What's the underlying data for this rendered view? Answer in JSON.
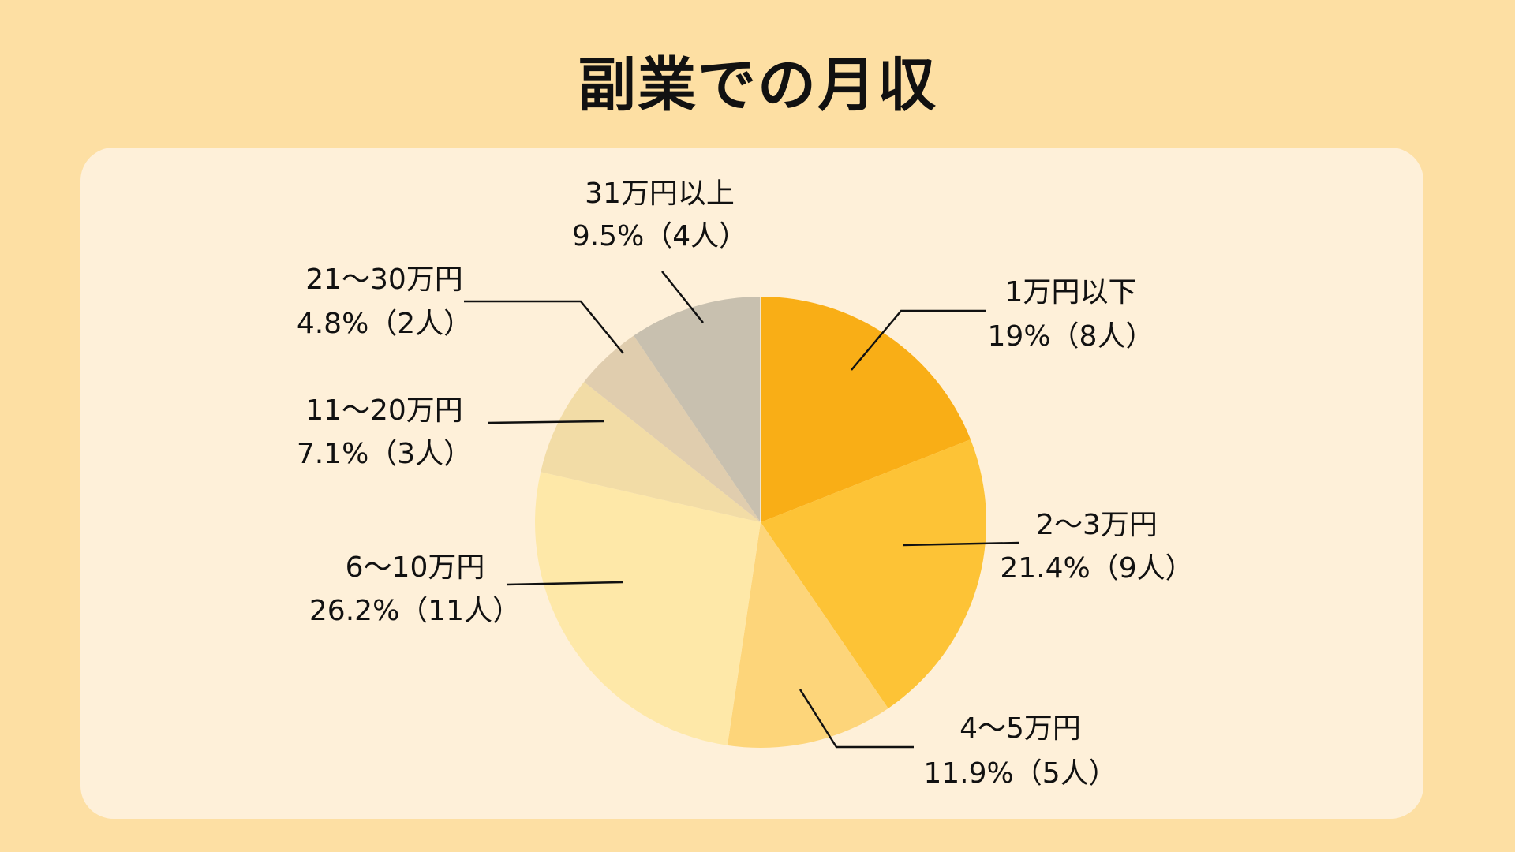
{
  "chart_data": {
    "type": "pie",
    "title": "副業での月収",
    "start": "top",
    "direction": "clockwise",
    "slices": [
      {
        "label": "1万円以下",
        "value": 19,
        "value_label": "19%（8人）",
        "count": 8,
        "color": "#F9AE16"
      },
      {
        "label": "2〜3万円",
        "value": 21.4,
        "value_label": "21.4%（9人）",
        "count": 9,
        "color": "#FDC336"
      },
      {
        "label": "4〜5万円",
        "value": 11.9,
        "value_label": "11.9%（5人）",
        "count": 5,
        "color": "#FDD57A"
      },
      {
        "label": "6〜10万円",
        "value": 26.2,
        "value_label": "26.2%（11人）",
        "count": 11,
        "color": "#FEE8A8"
      },
      {
        "label": "11〜20万円",
        "value": 7.1,
        "value_label": "7.1%（3人）",
        "count": 3,
        "color": "#F2DCA6"
      },
      {
        "label": "21〜30万円",
        "value": 4.8,
        "value_label": "4.8%（2人）",
        "count": 2,
        "color": "#E0CDAE"
      },
      {
        "label": "31万円以上",
        "value": 9.5,
        "value_label": "9.5%（4人）",
        "count": 4,
        "color": "#C8C0AF"
      }
    ]
  },
  "colors": {
    "background": "#FDDFA3",
    "card": "#FEF0D9",
    "text": "#111111"
  }
}
